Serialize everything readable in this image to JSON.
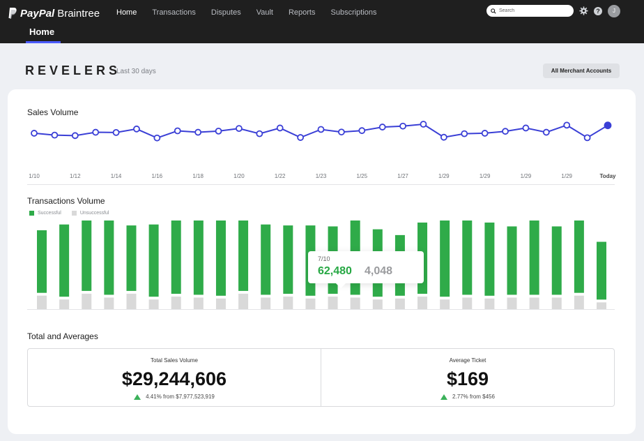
{
  "app": {
    "brand_bold": "PayPal",
    "brand_light": "Braintree"
  },
  "nav": {
    "items": [
      {
        "label": "Home",
        "active": true
      },
      {
        "label": "Transactions"
      },
      {
        "label": "Disputes"
      },
      {
        "label": "Vault"
      },
      {
        "label": "Reports"
      },
      {
        "label": "Subscriptions"
      }
    ],
    "subnav_active": "Home"
  },
  "search": {
    "placeholder": "Search"
  },
  "user": {
    "initial": "J"
  },
  "header": {
    "merchant": "REVELERS",
    "period": "Last 30 days",
    "merchant_button": "All Merchant Accounts"
  },
  "colors": {
    "accent": "#4b5bff",
    "line": "#3a3fd6",
    "success": "#2fab49",
    "unsuccessful": "#d9d9d9"
  },
  "sales_volume": {
    "title": "Sales Volume",
    "x_labels": [
      "1/10",
      "1/12",
      "1/14",
      "1/16",
      "1/18",
      "1/20",
      "1/22",
      "1/23",
      "1/25",
      "1/27",
      "1/29",
      "1/29",
      "1/29",
      "1/29",
      "Today"
    ],
    "points": [
      62,
      54,
      52,
      66,
      65,
      80,
      42,
      72,
      66,
      71,
      82,
      60,
      84,
      44,
      78,
      67,
      73,
      88,
      92,
      100,
      45,
      60,
      62,
      70,
      84,
      66,
      96,
      43,
      95
    ]
  },
  "transactions_volume": {
    "title": "Transactions Volume",
    "legend": {
      "successful": "Successful",
      "unsuccessful": "Unsuccessful"
    },
    "bars": [
      {
        "s": 65,
        "u": 14
      },
      {
        "s": 75,
        "u": 10
      },
      {
        "s": 81,
        "u": 16
      },
      {
        "s": 80,
        "u": 12
      },
      {
        "s": 68,
        "u": 16
      },
      {
        "s": 75,
        "u": 10
      },
      {
        "s": 77,
        "u": 13
      },
      {
        "s": 81,
        "u": 12
      },
      {
        "s": 81,
        "u": 11
      },
      {
        "s": 81,
        "u": 16
      },
      {
        "s": 73,
        "u": 12
      },
      {
        "s": 71,
        "u": 13
      },
      {
        "s": 73,
        "u": 11
      },
      {
        "s": 70,
        "u": 13
      },
      {
        "s": 82,
        "u": 12
      },
      {
        "s": 70,
        "u": 10
      },
      {
        "s": 63,
        "u": 11
      },
      {
        "s": 74,
        "u": 13
      },
      {
        "s": 81,
        "u": 10
      },
      {
        "s": 81,
        "u": 12
      },
      {
        "s": 76,
        "u": 11
      },
      {
        "s": 71,
        "u": 12
      },
      {
        "s": 81,
        "u": 12
      },
      {
        "s": 71,
        "u": 12
      },
      {
        "s": 81,
        "u": 14
      },
      {
        "s": 60,
        "u": 7
      }
    ],
    "tooltip": {
      "date": "7/10",
      "successful": "62,480",
      "unsuccessful": "4,048"
    }
  },
  "totals": {
    "title": "Total and  Averages",
    "sales": {
      "label": "Total Sales Volume",
      "value": "$29,244,606",
      "change": "4.41% from $7,977,523,919"
    },
    "ticket": {
      "label": "Average Ticket",
      "value": "$169",
      "change": "2.77% from $456"
    }
  }
}
